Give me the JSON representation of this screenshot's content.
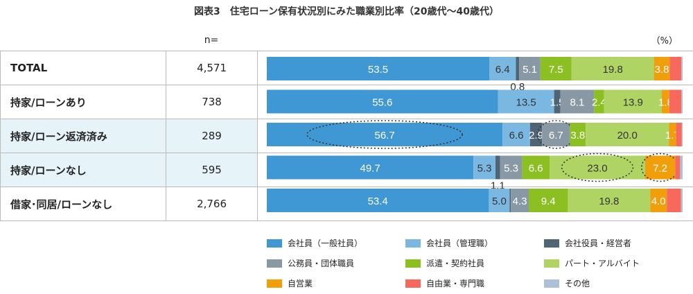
{
  "title": "図表3　住宅ローン保有状況別にみた職業別比率（20歳代～40歳代）",
  "n_header": "n=",
  "unit": "（%）",
  "chart_data": {
    "type": "bar",
    "orientation": "horizontal",
    "stacked": true,
    "xlim": [
      0,
      100
    ],
    "categories": [
      "TOTAL",
      "持家/ローンあり",
      "持家/ローン返済済み",
      "持家/ローンなし",
      "借家･同居/ローンなし"
    ],
    "n": [
      "4,571",
      "738",
      "289",
      "595",
      "2,766"
    ],
    "highlighted_rows": [
      2,
      3
    ],
    "series": [
      {
        "name": "会社員（一般社員）",
        "color": "#3f97d4",
        "values": [
          53.5,
          55.6,
          56.7,
          49.7,
          53.4
        ],
        "labels": [
          "53.5",
          "55.6",
          "56.7",
          "49.7",
          "53.4"
        ]
      },
      {
        "name": "会社員（管理職）",
        "color": "#7ab8e2",
        "values": [
          6.4,
          13.5,
          6.6,
          5.3,
          5.0
        ],
        "labels": [
          "6.4",
          "13.5",
          "6.6",
          "5.3",
          "5.0"
        ]
      },
      {
        "name": "会社役員・経営者",
        "color": "#4f6576",
        "values": [
          0.8,
          1.5,
          2.9,
          1.1,
          0.3
        ],
        "labels": [
          "0.8",
          "1.5",
          "2.9",
          "1.1",
          ""
        ]
      },
      {
        "name": "公務員・団体職員",
        "color": "#8898a4",
        "values": [
          5.1,
          8.1,
          6.7,
          5.3,
          4.3
        ],
        "labels": [
          "5.1",
          "8.1",
          "6.7",
          "5.3",
          "4.3"
        ]
      },
      {
        "name": "派遣・契約社員",
        "color": "#8cbf22",
        "values": [
          7.5,
          2.4,
          3.8,
          6.6,
          9.4
        ],
        "labels": [
          "7.5",
          "2.4",
          "3.8",
          "6.6",
          "9.4"
        ]
      },
      {
        "name": "パート・アルバイト",
        "color": "#b0d463",
        "values": [
          19.8,
          13.9,
          20.0,
          23.0,
          19.8
        ],
        "labels": [
          "19.8",
          "13.9",
          "20.0",
          "23.0",
          "19.8"
        ]
      },
      {
        "name": "自営業",
        "color": "#f09e0a",
        "values": [
          3.8,
          1.8,
          1.7,
          7.2,
          4.0
        ],
        "labels": [
          "3.8",
          "1.8",
          "1.7",
          "7.2",
          "4.0"
        ]
      },
      {
        "name": "自由業・専門職",
        "color": "#f7695c",
        "values": [
          2.8,
          2.9,
          1.4,
          1.2,
          3.4
        ],
        "labels": [
          "",
          "",
          "",
          "",
          ""
        ]
      },
      {
        "name": "その他",
        "color": "#adc0d8",
        "values": [
          0.3,
          0.3,
          0.2,
          0.6,
          0.4
        ],
        "labels": [
          "",
          "",
          "",
          "",
          ""
        ]
      }
    ],
    "circled": [
      [
        2,
        0
      ],
      [
        2,
        3
      ],
      [
        3,
        5
      ],
      [
        3,
        6
      ]
    ]
  }
}
